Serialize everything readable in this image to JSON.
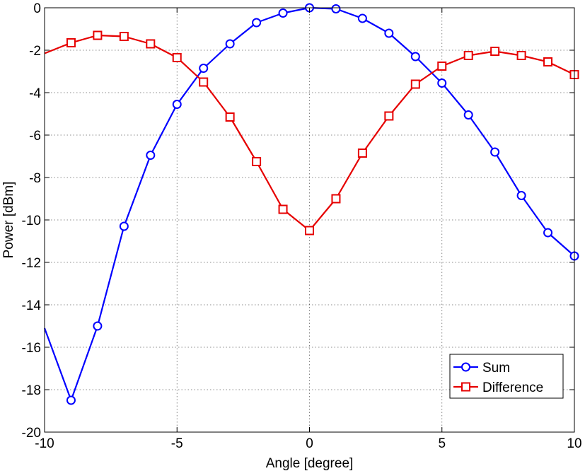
{
  "chart_data": {
    "type": "line",
    "title": "",
    "xlabel": "Angle [degree]",
    "ylabel": "Power [dBm]",
    "xlim": [
      -10,
      10
    ],
    "ylim": [
      -20,
      0
    ],
    "xticks": [
      -10,
      -5,
      0,
      5,
      10
    ],
    "yticks": [
      0,
      -2,
      -4,
      -6,
      -8,
      -10,
      -12,
      -14,
      -16,
      -18,
      -20
    ],
    "grid": true,
    "legend_position": "bottom-right",
    "series": [
      {
        "name": "Sum",
        "color": "#0000ff",
        "marker": "circle",
        "line_start": {
          "x": -10,
          "y": -15.1
        },
        "x": [
          -9,
          -8,
          -7,
          -6,
          -5,
          -4,
          -3,
          -2,
          -1,
          0,
          1,
          2,
          3,
          4,
          5,
          6,
          7,
          8,
          9,
          10
        ],
        "y": [
          -18.5,
          -15.0,
          -10.3,
          -6.95,
          -4.55,
          -2.85,
          -1.7,
          -0.7,
          -0.25,
          0,
          -0.05,
          -0.5,
          -1.2,
          -2.3,
          -3.55,
          -5.05,
          -6.8,
          -8.85,
          -10.6,
          -11.7
        ]
      },
      {
        "name": "Difference",
        "color": "#e60000",
        "marker": "square",
        "line_start": {
          "x": -10,
          "y": -2.15
        },
        "x": [
          -9,
          -8,
          -7,
          -6,
          -5,
          -4,
          -3,
          -2,
          -1,
          0,
          1,
          2,
          3,
          4,
          5,
          6,
          7,
          8,
          9,
          10
        ],
        "y": [
          -1.65,
          -1.3,
          -1.35,
          -1.7,
          -2.35,
          -3.5,
          -5.15,
          -7.25,
          -9.5,
          -10.5,
          -9.0,
          -6.85,
          -5.1,
          -3.6,
          -2.75,
          -2.25,
          -2.05,
          -2.25,
          -2.55,
          -3.15
        ]
      }
    ]
  }
}
